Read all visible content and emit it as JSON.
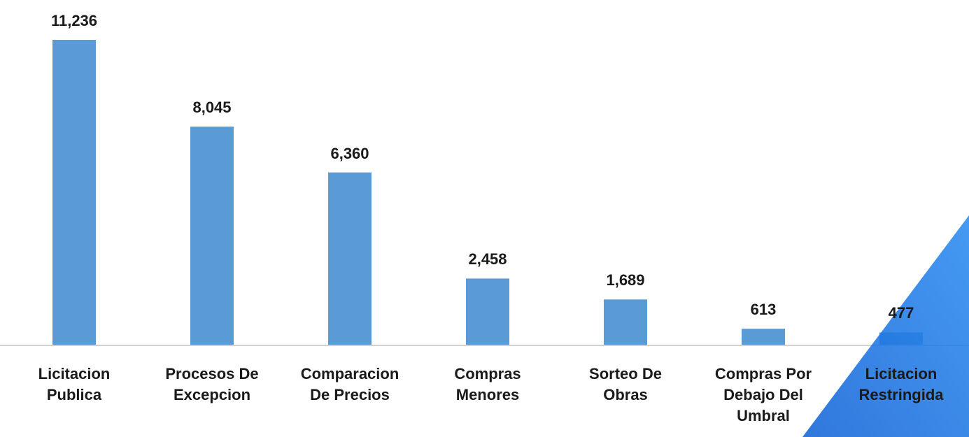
{
  "chart_data": {
    "type": "bar",
    "categories": [
      "Licitacion Publica",
      "Procesos De Excepcion",
      "Comparacion De Precios",
      "Compras Menores",
      "Sorteo De Obras",
      "Compras Por Debajo Del Umbral",
      "Licitacion Restringida"
    ],
    "values": [
      11236,
      8045,
      6360,
      2458,
      1689,
      613,
      477
    ],
    "value_labels": [
      "11,236",
      "8,045",
      "6,360",
      "2,458",
      "1,689",
      "613",
      "477"
    ],
    "color": "#5b9bd5"
  }
}
